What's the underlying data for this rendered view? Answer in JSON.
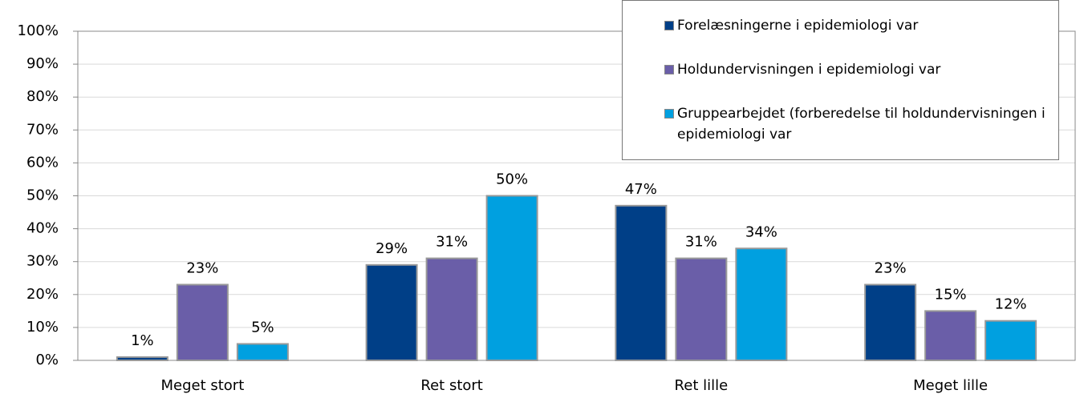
{
  "chart_data": {
    "type": "bar",
    "categories": [
      "Meget stort",
      "Ret stort",
      "Ret lille",
      "Meget lille"
    ],
    "series": [
      {
        "name": "Forelæsningerne i epidemiologi var",
        "color": "#003f87",
        "values": [
          1,
          29,
          47,
          23
        ],
        "value_labels": [
          "1%",
          "29%",
          "47%",
          "23%"
        ]
      },
      {
        "name": "Holdundervisningen i epidemiologi var",
        "color": "#6a5ea8",
        "values": [
          23,
          31,
          31,
          15
        ],
        "value_labels": [
          "23%",
          "31%",
          "31%",
          "15%"
        ]
      },
      {
        "name": "Gruppearbejdet (forberedelse til holdundervisningen i epidemiologi var",
        "color": "#00a0e0",
        "values": [
          5,
          50,
          34,
          12
        ],
        "value_labels": [
          "5%",
          "50%",
          "34%",
          "12%"
        ]
      }
    ],
    "ylim": [
      0,
      100
    ],
    "yticks": [
      {
        "value": 0,
        "label": "0%"
      },
      {
        "value": 10,
        "label": "10%"
      },
      {
        "value": 20,
        "label": "20%"
      },
      {
        "value": 30,
        "label": "30%"
      },
      {
        "value": 40,
        "label": "40%"
      },
      {
        "value": 50,
        "label": "50%"
      },
      {
        "value": 60,
        "label": "60%"
      },
      {
        "value": 70,
        "label": "70%"
      },
      {
        "value": 80,
        "label": "80%"
      },
      {
        "value": 90,
        "label": "90%"
      },
      {
        "value": 100,
        "label": "100%"
      }
    ],
    "grid": true,
    "legend": "top-right"
  }
}
